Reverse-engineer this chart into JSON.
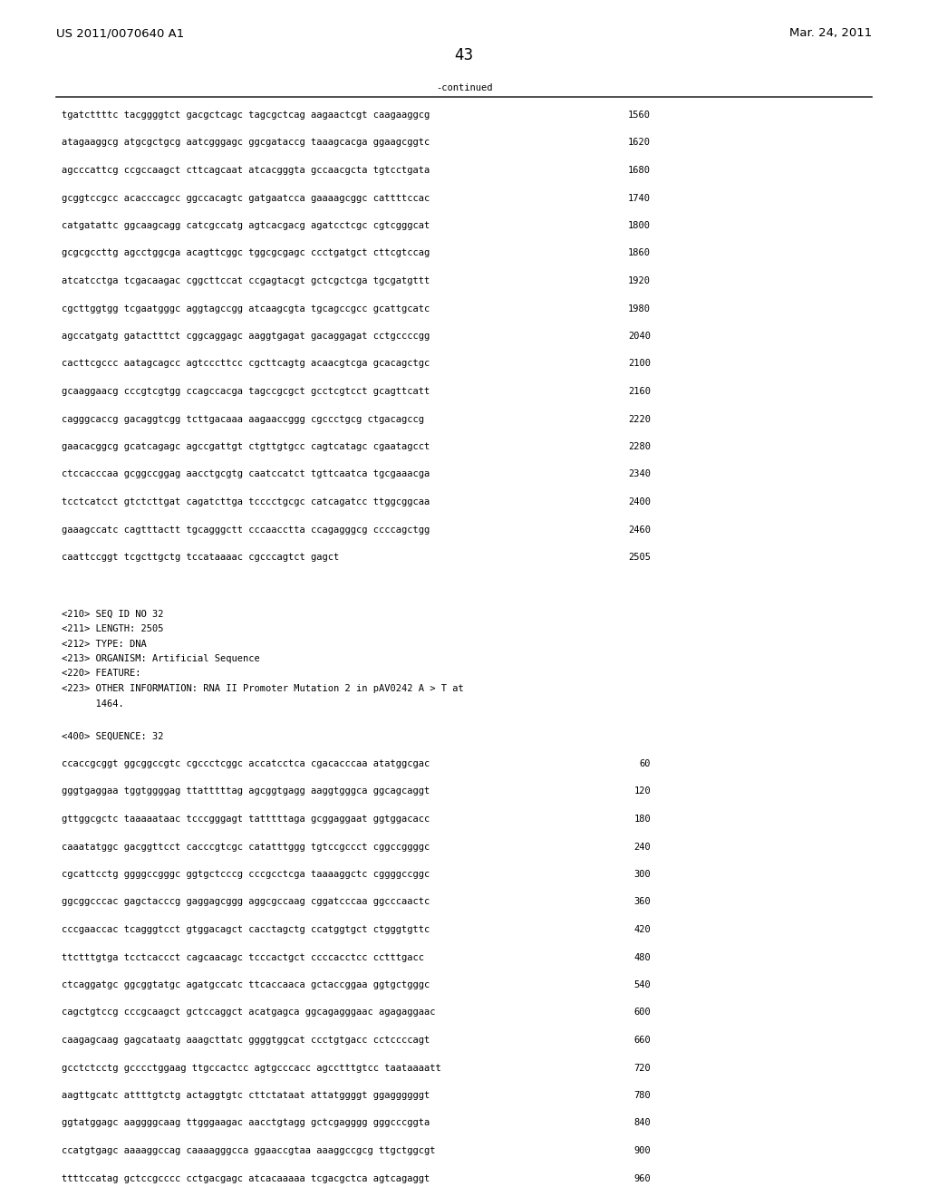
{
  "header_left": "US 2011/0070640 A1",
  "header_right": "Mar. 24, 2011",
  "page_number": "43",
  "continued_label": "-continued",
  "background_color": "#ffffff",
  "text_color": "#000000",
  "font_size_body": 7.5,
  "font_size_header": 9.5,
  "font_size_page_num": 12,
  "sequence_lines_continued": [
    [
      "tgatcttttc tacggggtct gacgctcagc tagcgctcag aagaactcgt caagaaggcg",
      "1560"
    ],
    [
      "atagaaggcg atgcgctgcg aatcgggagc ggcgataccg taaagcacga ggaagcggtc",
      "1620"
    ],
    [
      "agcccattcg ccgccaagct cttcagcaat atcacgggta gccaacgcta tgtcctgata",
      "1680"
    ],
    [
      "gcggtccgcc acacccagcc ggccacagtc gatgaatcca gaaaagcggc cattttccac",
      "1740"
    ],
    [
      "catgatattc ggcaagcagg catcgccatg agtcacgacg agatcctcgc cgtcgggcat",
      "1800"
    ],
    [
      "gcgcgccttg agcctggcga acagttcggc tggcgcgagc ccctgatgct cttcgtccag",
      "1860"
    ],
    [
      "atcatcctga tcgacaagac cggcttccat ccgagtacgt gctcgctcga tgcgatgttt",
      "1920"
    ],
    [
      "cgcttggtgg tcgaatgggc aggtagccgg atcaagcgta tgcagccgcc gcattgcatc",
      "1980"
    ],
    [
      "agccatgatg gatactttct cggcaggagc aaggtgagat gacaggagat cctgccccgg",
      "2040"
    ],
    [
      "cacttcgccc aatagcagcc agtcccttcc cgcttcagtg acaacgtcga gcacagctgc",
      "2100"
    ],
    [
      "gcaaggaacg cccgtcgtgg ccagccacga tagccgcgct gcctcgtcct gcagttcatt",
      "2160"
    ],
    [
      "cagggcaccg gacaggtcgg tcttgacaaa aagaaccggg cgccctgcg ctgacagccg",
      "2220"
    ],
    [
      "gaacacggcg gcatcagagc agccgattgt ctgttgtgcc cagtcatagc cgaatagcct",
      "2280"
    ],
    [
      "ctccacccaa gcggccggag aacctgcgtg caatccatct tgttcaatca tgcgaaacga",
      "2340"
    ],
    [
      "tcctcatcct gtctcttgat cagatcttga tcccctgcgc catcagatcc ttggcggcaa",
      "2400"
    ],
    [
      "gaaagccatc cagtttactt tgcagggctt cccaacctta ccagagggcg ccccagctgg",
      "2460"
    ],
    [
      "caattccggt tcgcttgctg tccataaaac cgcccagtct gagct",
      "2505"
    ]
  ],
  "metadata_lines": [
    "<210> SEQ ID NO 32",
    "<211> LENGTH: 2505",
    "<212> TYPE: DNA",
    "<213> ORGANISM: Artificial Sequence",
    "<220> FEATURE:",
    "<223> OTHER INFORMATION: RNA II Promoter Mutation 2 in pAV0242 A > T at",
    "      1464."
  ],
  "sequence_label": "<400> SEQUENCE: 32",
  "sequence_lines_new": [
    [
      "ccaccgcggt ggcggccgtc cgccctcggc accatcctca cgacacccaa atatggcgac",
      "60"
    ],
    [
      "gggtgaggaa tggtggggag ttatttttag agcggtgagg aaggtgggca ggcagcaggt",
      "120"
    ],
    [
      "gttggcgctc taaaaataac tcccgggagt tatttttaga gcggaggaat ggtggacacc",
      "180"
    ],
    [
      "caaatatggc gacggttcct cacccgtcgc catatttggg tgtccgccct cggccggggc",
      "240"
    ],
    [
      "cgcattcctg ggggccgggc ggtgctcccg cccgcctcga taaaaggctc cggggccggc",
      "300"
    ],
    [
      "ggcggcccac gagctacccg gaggagcggg aggcgccaag cggatcccaa ggcccaactc",
      "360"
    ],
    [
      "cccgaaccac tcagggtcct gtggacagct cacctagctg ccatggtgct ctgggtgttc",
      "420"
    ],
    [
      "ttctttgtga tcctcaccct cagcaacagc tcccactgct ccccacctcc cctttgacc",
      "480"
    ],
    [
      "ctcaggatgc ggcggtatgc agatgccatc ttcaccaaca gctaccggaa ggtgctgggc",
      "540"
    ],
    [
      "cagctgtccg cccgcaagct gctccaggct acatgagca ggcagagggaac agagaggaac",
      "600"
    ],
    [
      "caagagcaag gagcataatg aaagcttatc ggggtggcat ccctgtgacc cctccccagt",
      "660"
    ],
    [
      "gcctctcctg gcccctggaag ttgccactcc agtgcccacc agcctttgtcc taataaaatt",
      "720"
    ],
    [
      "aagttgcatc attttgtctg actaggtgtc cttctataat attatggggt ggaggggggt",
      "780"
    ],
    [
      "ggtatggagc aaggggcaag ttgggaagac aacctgtagg gctcgagggg gggcccggta",
      "840"
    ],
    [
      "ccatgtgagc aaaaggccag caaaagggcca ggaaccgtaa aaaggccgcg ttgctggcgt",
      "900"
    ],
    [
      "ttttccatag gctccgcccc cctgacgagc atcacaaaaa tcgacgctca agtcagaggt",
      "960"
    ]
  ]
}
